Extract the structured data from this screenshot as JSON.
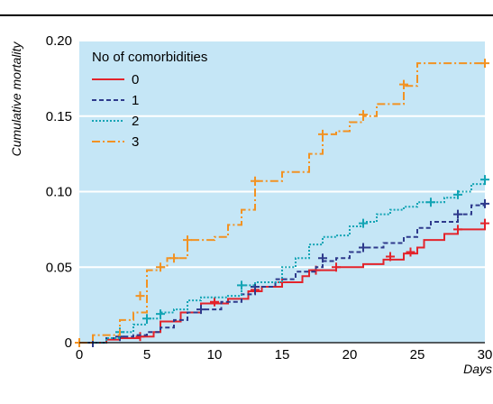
{
  "colors": {
    "plot_background": "#c5e6f6",
    "gridline": "#ffffff",
    "top_rule": "#000000"
  },
  "chart_data": {
    "type": "line",
    "subtype": "step-kaplan-meier-cumulative",
    "title": "",
    "xlabel": "Days",
    "ylabel": "Cumulative mortality",
    "xlim": [
      0,
      30
    ],
    "ylim": [
      0,
      0.2
    ],
    "x_ticks": [
      0,
      5,
      10,
      15,
      20,
      25,
      30
    ],
    "x_tick_labels": [
      "0",
      "5",
      "10",
      "15",
      "20",
      "25",
      "30"
    ],
    "y_ticks": [
      0,
      0.05,
      0.1,
      0.15,
      0.2
    ],
    "y_tick_labels": [
      "0",
      "0.05",
      "0.10",
      "0.15",
      "0.20"
    ],
    "grid": "horizontal",
    "legend": {
      "title": "No of comorbidities",
      "position": "top-left",
      "entries": [
        "0",
        "1",
        "2",
        "3"
      ]
    },
    "series": [
      {
        "name": "0",
        "color": "#e3232b",
        "dash": "solid",
        "steps": [
          [
            0,
            0
          ],
          [
            1,
            0
          ],
          [
            2,
            0.002
          ],
          [
            3,
            0.003
          ],
          [
            4.5,
            0.004
          ],
          [
            5.5,
            0.007
          ],
          [
            6,
            0.014
          ],
          [
            7.5,
            0.02
          ],
          [
            9,
            0.026
          ],
          [
            11,
            0.029
          ],
          [
            12.5,
            0.034
          ],
          [
            13.5,
            0.037
          ],
          [
            15,
            0.04
          ],
          [
            16.5,
            0.044
          ],
          [
            17,
            0.048
          ],
          [
            19,
            0.05
          ],
          [
            21,
            0.052
          ],
          [
            22.5,
            0.055
          ],
          [
            24,
            0.059
          ],
          [
            25,
            0.063
          ],
          [
            25.5,
            0.068
          ],
          [
            27,
            0.072
          ],
          [
            28,
            0.075
          ],
          [
            30,
            0.079
          ]
        ],
        "censored": [
          [
            4.5,
            0.004
          ],
          [
            10,
            0.027
          ],
          [
            13,
            0.035
          ],
          [
            15,
            0.04
          ],
          [
            17.5,
            0.048
          ],
          [
            19,
            0.05
          ],
          [
            23,
            0.057
          ],
          [
            24.5,
            0.06
          ],
          [
            28,
            0.075
          ],
          [
            30,
            0.079
          ]
        ]
      },
      {
        "name": "1",
        "color": "#2e3a8c",
        "dash": "dashed",
        "steps": [
          [
            0,
            0
          ],
          [
            1,
            0
          ],
          [
            2,
            0.003
          ],
          [
            3,
            0.004
          ],
          [
            4,
            0.005
          ],
          [
            5,
            0.007
          ],
          [
            6,
            0.01
          ],
          [
            7,
            0.015
          ],
          [
            8,
            0.02
          ],
          [
            9,
            0.022
          ],
          [
            10.5,
            0.027
          ],
          [
            12,
            0.032
          ],
          [
            13,
            0.037
          ],
          [
            14.5,
            0.042
          ],
          [
            16,
            0.047
          ],
          [
            17.5,
            0.05
          ],
          [
            18,
            0.054
          ],
          [
            19,
            0.056
          ],
          [
            20,
            0.06
          ],
          [
            21,
            0.063
          ],
          [
            22.5,
            0.066
          ],
          [
            24,
            0.07
          ],
          [
            25,
            0.076
          ],
          [
            26,
            0.08
          ],
          [
            28,
            0.085
          ],
          [
            29,
            0.091
          ],
          [
            30,
            0.092
          ]
        ],
        "censored": [
          [
            1,
            0
          ],
          [
            3,
            0.004
          ],
          [
            9,
            0.022
          ],
          [
            13,
            0.037
          ],
          [
            18,
            0.056
          ],
          [
            21,
            0.063
          ],
          [
            28,
            0.085
          ],
          [
            30,
            0.092
          ]
        ]
      },
      {
        "name": "2",
        "color": "#12a4b4",
        "dash": "dotted",
        "steps": [
          [
            0,
            0
          ],
          [
            1,
            0
          ],
          [
            2,
            0.003
          ],
          [
            3,
            0.007
          ],
          [
            4,
            0.012
          ],
          [
            5,
            0.016
          ],
          [
            6,
            0.02
          ],
          [
            7,
            0.022
          ],
          [
            8,
            0.028
          ],
          [
            9,
            0.03
          ],
          [
            11,
            0.031
          ],
          [
            12,
            0.038
          ],
          [
            13,
            0.04
          ],
          [
            15,
            0.05
          ],
          [
            16,
            0.056
          ],
          [
            17,
            0.065
          ],
          [
            18,
            0.07
          ],
          [
            19,
            0.071
          ],
          [
            20,
            0.077
          ],
          [
            21,
            0.08
          ],
          [
            22,
            0.085
          ],
          [
            23,
            0.088
          ],
          [
            24,
            0.09
          ],
          [
            25,
            0.093
          ],
          [
            27,
            0.096
          ],
          [
            28,
            0.1
          ],
          [
            29,
            0.105
          ],
          [
            30,
            0.108
          ]
        ],
        "censored": [
          [
            3,
            0.007
          ],
          [
            5,
            0.016
          ],
          [
            6,
            0.019
          ],
          [
            12,
            0.038
          ],
          [
            21,
            0.079
          ],
          [
            26,
            0.093
          ],
          [
            28,
            0.098
          ],
          [
            30,
            0.108
          ]
        ]
      },
      {
        "name": "3",
        "color": "#f29222",
        "dash": "dashdot",
        "steps": [
          [
            0,
            0
          ],
          [
            1,
            0.005
          ],
          [
            3,
            0.015
          ],
          [
            4,
            0.02
          ],
          [
            5,
            0.048
          ],
          [
            6,
            0.05
          ],
          [
            6.5,
            0.056
          ],
          [
            8,
            0.068
          ],
          [
            10,
            0.07
          ],
          [
            11,
            0.078
          ],
          [
            12,
            0.088
          ],
          [
            13,
            0.107
          ],
          [
            15,
            0.113
          ],
          [
            17,
            0.125
          ],
          [
            18,
            0.138
          ],
          [
            19,
            0.14
          ],
          [
            20,
            0.146
          ],
          [
            21,
            0.15
          ],
          [
            22,
            0.158
          ],
          [
            24,
            0.17
          ],
          [
            25,
            0.185
          ],
          [
            30,
            0.185
          ]
        ],
        "censored": [
          [
            0,
            0
          ],
          [
            4.5,
            0.031
          ],
          [
            6,
            0.05
          ],
          [
            7,
            0.056
          ],
          [
            8,
            0.068
          ],
          [
            13,
            0.107
          ],
          [
            18,
            0.138
          ],
          [
            21,
            0.151
          ],
          [
            24,
            0.171
          ],
          [
            30,
            0.185
          ]
        ]
      }
    ]
  }
}
